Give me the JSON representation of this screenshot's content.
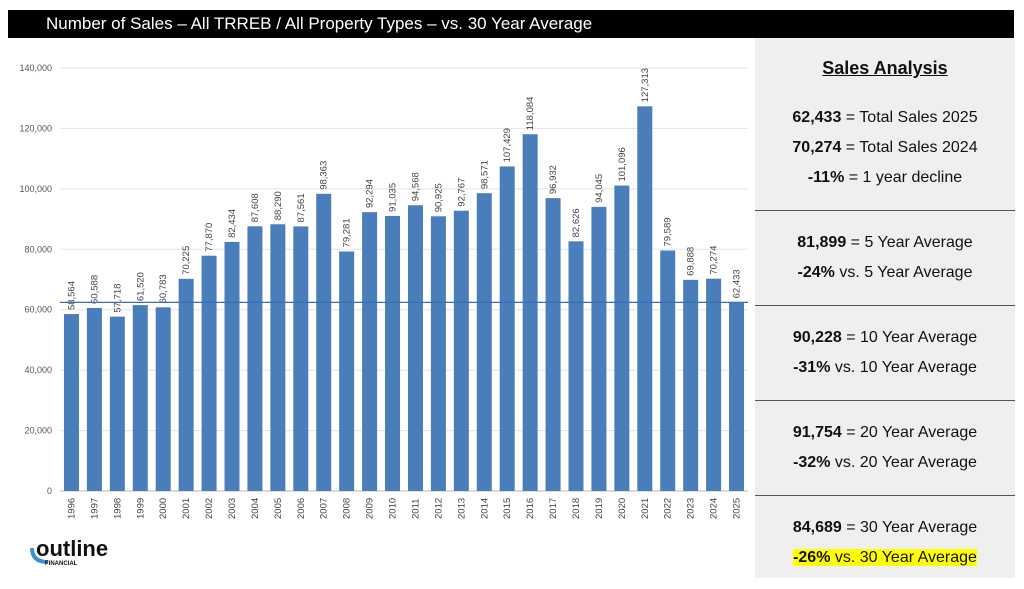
{
  "title": "Number of Sales – All TRREB / All Property Types – vs. 30 Year Average",
  "chart_data": {
    "type": "bar",
    "title": "Number of Sales – All TRREB / All Property Types – vs. 30 Year Average",
    "categories": [
      "1996",
      "1997",
      "1998",
      "1999",
      "2000",
      "2001",
      "2002",
      "2003",
      "2004",
      "2005",
      "2006",
      "2007",
      "2008",
      "2009",
      "2010",
      "2011",
      "2012",
      "2013",
      "2014",
      "2015",
      "2016",
      "2017",
      "2018",
      "2019",
      "2020",
      "2021",
      "2022",
      "2023",
      "2024",
      "2025"
    ],
    "values": [
      58564,
      60588,
      57718,
      61520,
      60783,
      70225,
      77870,
      82434,
      87608,
      88290,
      87561,
      98363,
      79281,
      92294,
      91035,
      94568,
      90925,
      92767,
      98571,
      107429,
      118084,
      96932,
      82626,
      94045,
      101096,
      127313,
      79589,
      69888,
      70274,
      62433
    ],
    "labels": [
      "58,564",
      "60,588",
      "57,718",
      "61,520",
      "60,783",
      "70,225",
      "77,870",
      "82,434",
      "87,608",
      "88,290",
      "87,561",
      "98,363",
      "79,281",
      "92,294",
      "91,035",
      "94,568",
      "90,925",
      "92,767",
      "98,571",
      "107,429",
      "118,084",
      "96,932",
      "82,626",
      "94,045",
      "101,096",
      "127,313",
      "79,589",
      "69,888",
      "70,274",
      "62,433"
    ],
    "yticks": [
      "0",
      "20,000",
      "40,000",
      "60,000",
      "80,000",
      "100,000",
      "120,000",
      "140,000"
    ],
    "ylim": [
      0,
      140000
    ],
    "reference_line": 62433,
    "grid": true,
    "bar_color": "#4a7ebb"
  },
  "panel": {
    "heading": "Sales Analysis",
    "sections": [
      [
        {
          "b": "62,433",
          "t": " = Total Sales 2025"
        },
        {
          "b": "70,274",
          "t": " = Total Sales 2024"
        },
        {
          "b": "-11%",
          "t": " = 1 year decline"
        }
      ],
      [
        {
          "b": "81,899",
          "t": " = 5 Year Average"
        },
        {
          "b": "-24%",
          "t": " vs. 5 Year Average"
        }
      ],
      [
        {
          "b": "90,228",
          "t": " = 10 Year Average"
        },
        {
          "b": "-31%",
          "t": " vs. 10 Year Average"
        }
      ],
      [
        {
          "b": "91,754",
          "t": " = 20 Year Average"
        },
        {
          "b": "-32%",
          "t": " vs. 20 Year Average"
        }
      ],
      [
        {
          "b": "84,689",
          "t": " = 30 Year Average"
        },
        {
          "b": "-26%",
          "t": " vs. 30 Year Average",
          "highlight": true
        }
      ]
    ]
  },
  "logo": {
    "name": "outline",
    "sub": "FINANCIAL"
  }
}
